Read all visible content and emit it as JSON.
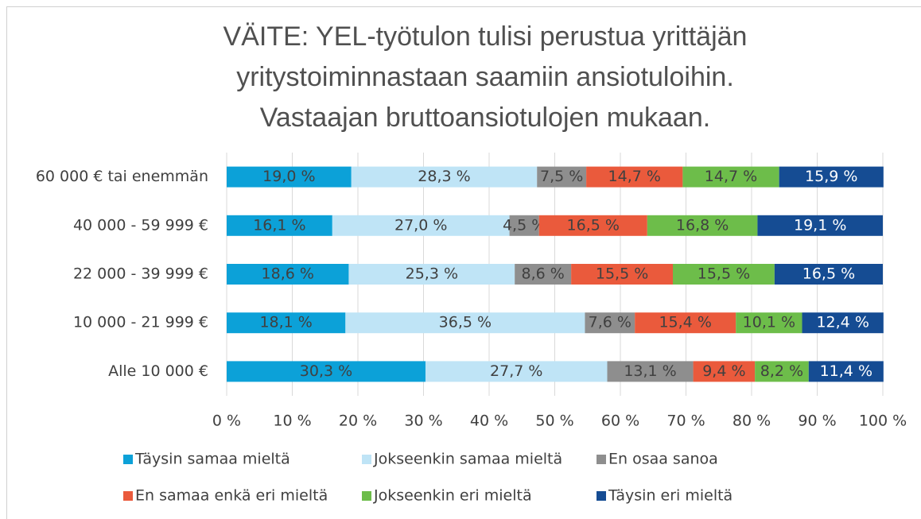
{
  "chart_data": {
    "type": "stacked-barh",
    "title": [
      "VÄITE: YEL-työtulon tulisi perustua yrittäjän",
      "yritystoiminnastaan saamiin ansiotuloihin.",
      "Vastaajan bruttoansiotulojen mukaan."
    ],
    "categories": [
      "60 000 € tai enemmän",
      "40 000 - 59 999 €",
      "22 000 - 39 999 €",
      "10 000 - 21 999 €",
      "Alle 10 000 €"
    ],
    "series": [
      {
        "name": "Täysin samaa mieltä",
        "color": "#0ca1d8",
        "values": [
          19.0,
          16.1,
          18.6,
          18.1,
          30.3
        ],
        "value_labels": [
          "19,0 %",
          "16,1 %",
          "18,6 %",
          "18,1 %",
          "30,3 %"
        ]
      },
      {
        "name": "Jokseenkin samaa mieltä",
        "color": "#bfe4f6",
        "values": [
          28.3,
          27.0,
          25.3,
          36.5,
          27.7
        ],
        "value_labels": [
          "28,3 %",
          "27,0 %",
          "25,3 %",
          "36,5 %",
          "27,7 %"
        ]
      },
      {
        "name": "En osaa sanoa",
        "color": "#8e8e8e",
        "values": [
          7.5,
          4.5,
          8.6,
          7.6,
          13.1
        ],
        "value_labels": [
          "7,5 %",
          "4,5 %",
          "8,6 %",
          "7,6 %",
          "13,1 %"
        ]
      },
      {
        "name": "En samaa enkä eri mieltä",
        "color": "#ea5a3c",
        "values": [
          14.7,
          16.5,
          15.5,
          15.4,
          9.4
        ],
        "value_labels": [
          "14,7 %",
          "16,5 %",
          "15,5 %",
          "15,4 %",
          "9,4 %"
        ]
      },
      {
        "name": "Jokseenkin eri mieltä",
        "color": "#6dbd4a",
        "values": [
          14.7,
          16.8,
          15.5,
          10.1,
          8.2
        ],
        "value_labels": [
          "14,7 %",
          "16,8 %",
          "15,5 %",
          "10,1 %",
          "8,2 %"
        ]
      },
      {
        "name": "Täysin eri mieltä",
        "color": "#154c93",
        "values": [
          15.9,
          19.1,
          16.5,
          12.4,
          11.4
        ],
        "value_labels": [
          "15,9 %",
          "19,1 %",
          "16,5 %",
          "12,4 %",
          "11,4 %"
        ]
      }
    ],
    "xlim": [
      0,
      100
    ],
    "xticks": [
      {
        "value": 0,
        "label": "0 %"
      },
      {
        "value": 10,
        "label": "10 %"
      },
      {
        "value": 20,
        "label": "20 %"
      },
      {
        "value": 30,
        "label": "30 %"
      },
      {
        "value": 40,
        "label": "40 %"
      },
      {
        "value": 50,
        "label": "50 %"
      },
      {
        "value": 60,
        "label": "60 %"
      },
      {
        "value": 70,
        "label": "70 %"
      },
      {
        "value": 80,
        "label": "80 %"
      },
      {
        "value": 90,
        "label": "90 %"
      },
      {
        "value": 100,
        "label": "100 %"
      }
    ],
    "grid": true,
    "legend": "bottom"
  }
}
